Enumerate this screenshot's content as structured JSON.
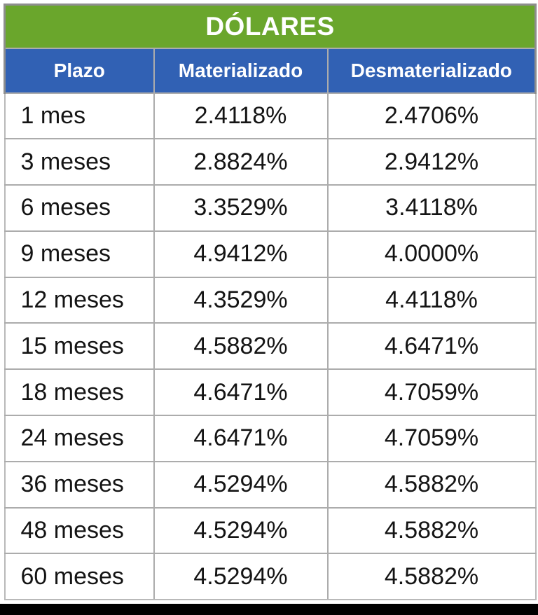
{
  "title": "DÓLARES",
  "columns": [
    "Plazo",
    "Materializado",
    "Desmaterializado"
  ],
  "rows": [
    {
      "plazo": "1 mes",
      "materializado": "2.4118%",
      "desmaterializado": "2.4706%"
    },
    {
      "plazo": "3 meses",
      "materializado": "2.8824%",
      "desmaterializado": "2.9412%"
    },
    {
      "plazo": "6 meses",
      "materializado": "3.3529%",
      "desmaterializado": "3.4118%"
    },
    {
      "plazo": "9 meses",
      "materializado": "4.9412%",
      "desmaterializado": "4.0000%"
    },
    {
      "plazo": "12 meses",
      "materializado": "4.3529%",
      "desmaterializado": "4.4118%"
    },
    {
      "plazo": "15 meses",
      "materializado": "4.5882%",
      "desmaterializado": "4.6471%"
    },
    {
      "plazo": "18 meses",
      "materializado": "4.6471%",
      "desmaterializado": "4.7059%"
    },
    {
      "plazo": "24 meses",
      "materializado": "4.6471%",
      "desmaterializado": "4.7059%"
    },
    {
      "plazo": "36 meses",
      "materializado": "4.5294%",
      "desmaterializado": "4.5882%"
    },
    {
      "plazo": "48 meses",
      "materializado": "4.5294%",
      "desmaterializado": "4.5882%"
    },
    {
      "plazo": "60 meses",
      "materializado": "4.5294%",
      "desmaterializado": "4.5882%"
    }
  ],
  "colors": {
    "title_bg": "#6AA62C",
    "header_bg": "#3161B4",
    "header_text": "#FFFFFF",
    "body_text": "#141414",
    "grid_border": "#ACACAC",
    "outer_border": "#8E8E8E",
    "bottom_bar": "#000000"
  },
  "chart_data": {
    "type": "table",
    "title": "DÓLARES",
    "categories": [
      "1 mes",
      "3 meses",
      "6 meses",
      "9 meses",
      "12 meses",
      "15 meses",
      "18 meses",
      "24 meses",
      "36 meses",
      "48 meses",
      "60 meses"
    ],
    "series": [
      {
        "name": "Materializado",
        "values": [
          2.4118,
          2.8824,
          3.3529,
          4.9412,
          4.3529,
          4.5882,
          4.6471,
          4.6471,
          4.5294,
          4.5294,
          4.5294
        ]
      },
      {
        "name": "Desmaterializado",
        "values": [
          2.4706,
          2.9412,
          3.4118,
          4.0,
          4.4118,
          4.6471,
          4.7059,
          4.7059,
          4.5882,
          4.5882,
          4.5882
        ]
      }
    ],
    "unit": "%",
    "x_header": "Plazo"
  }
}
